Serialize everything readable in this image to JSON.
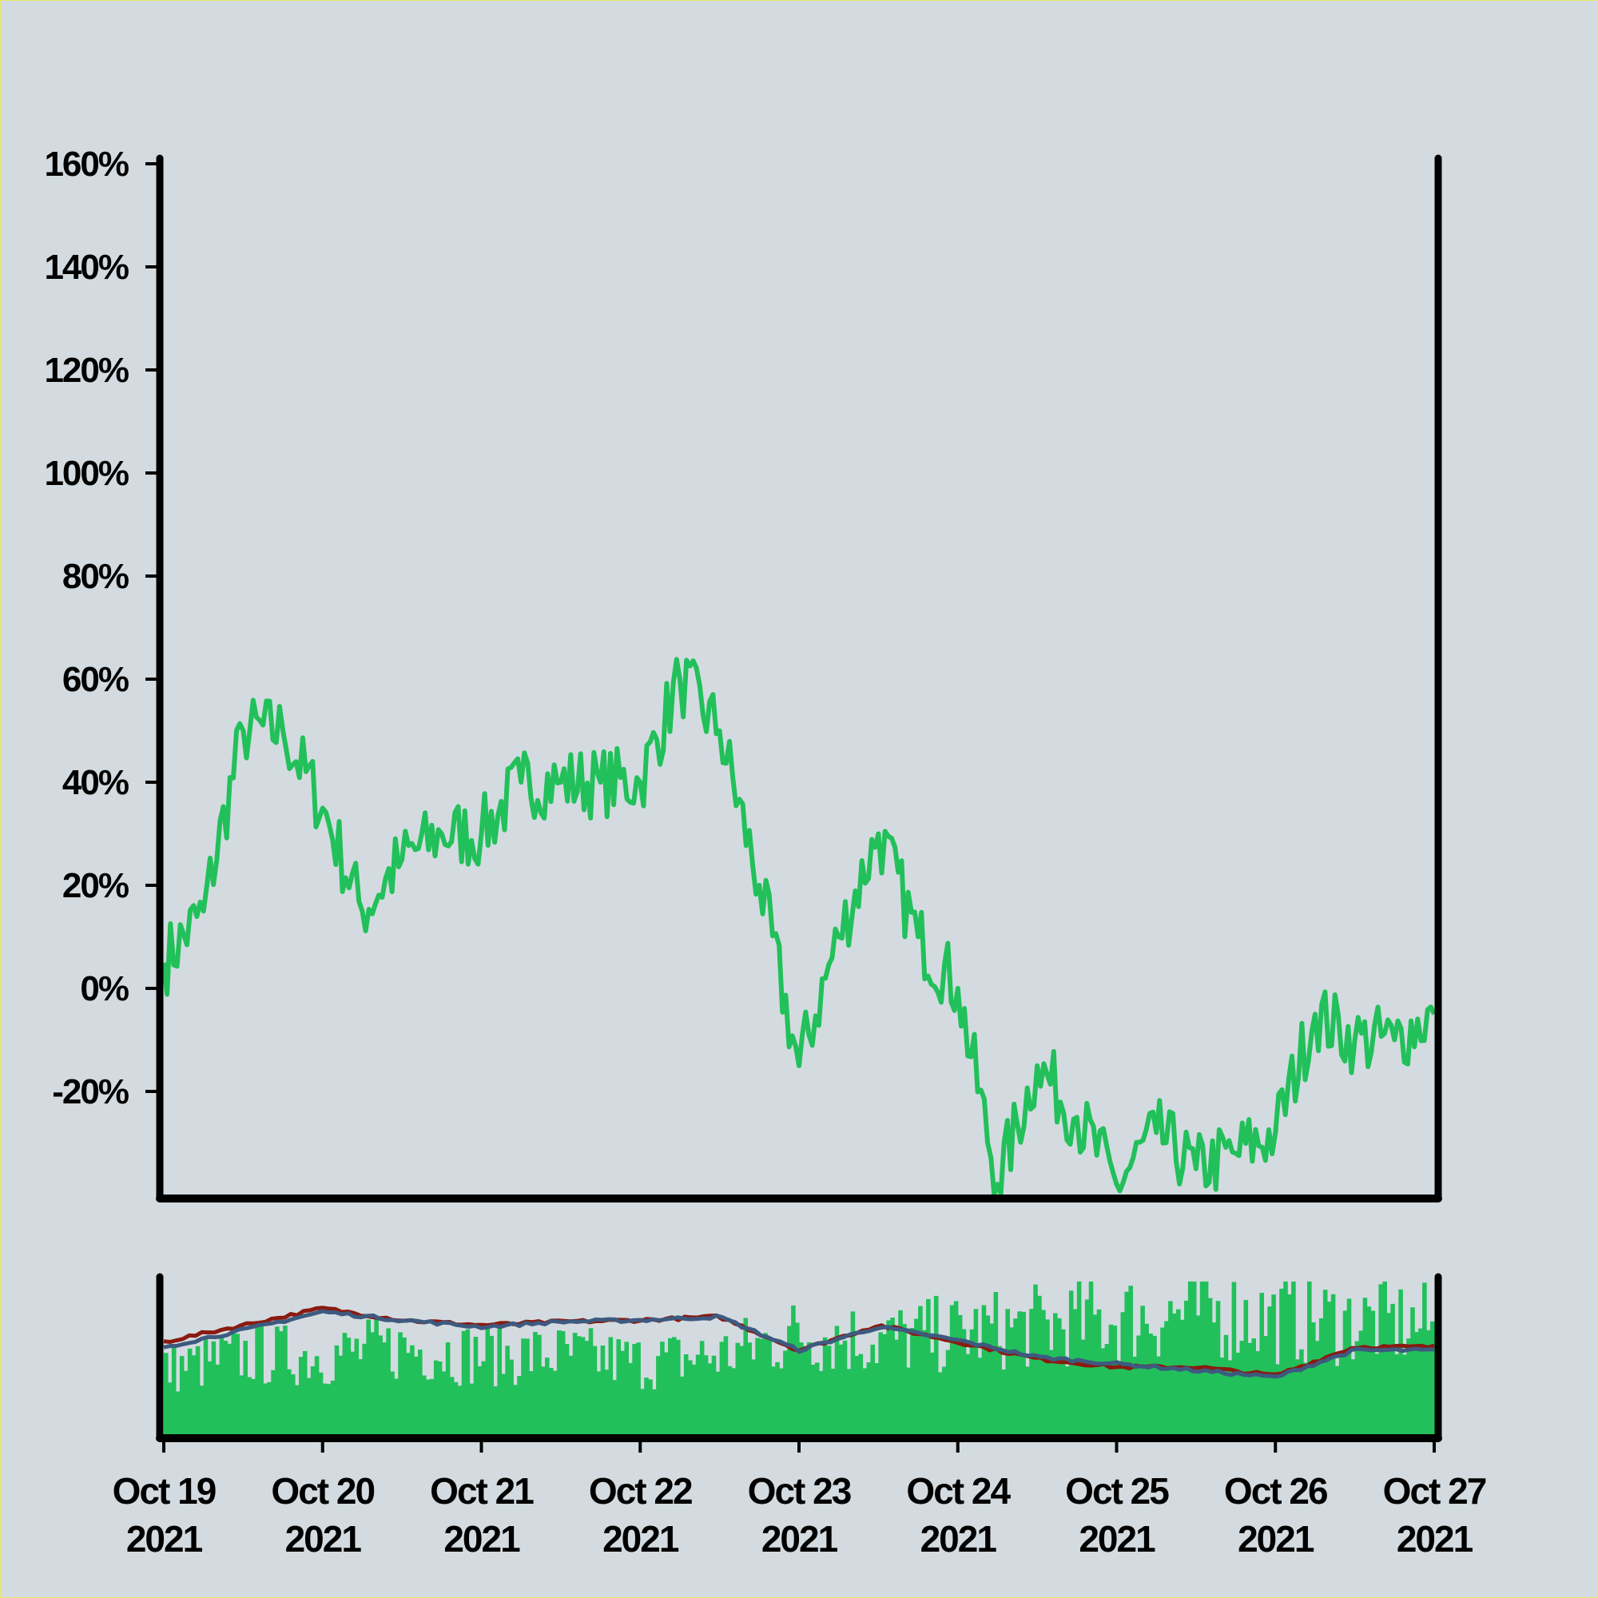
{
  "chart_data": {
    "type": "line",
    "ylim": [
      -40,
      160
    ],
    "y_ticks": [
      -20,
      0,
      20,
      40,
      60,
      80,
      100,
      120,
      140,
      160
    ],
    "y_tick_labels": [
      "-20%",
      "0%",
      "20%",
      "40%",
      "60%",
      "80%",
      "100%",
      "120%",
      "140%",
      "160%"
    ],
    "x_range": [
      "2021-10-19",
      "2021-10-27"
    ],
    "x_tick_labels": [
      {
        "date": "2021-10-19",
        "line1": "Oct 19",
        "line2": "2021"
      },
      {
        "date": "2021-10-20",
        "line1": "Oct 20",
        "line2": "2021"
      },
      {
        "date": "2021-10-21",
        "line1": "Oct 21",
        "line2": "2021"
      },
      {
        "date": "2021-10-22",
        "line1": "Oct 22",
        "line2": "2021"
      },
      {
        "date": "2021-10-23",
        "line1": "Oct 23",
        "line2": "2021"
      },
      {
        "date": "2021-10-24",
        "line1": "Oct 24",
        "line2": "2021"
      },
      {
        "date": "2021-10-25",
        "line1": "Oct 25",
        "line2": "2021"
      },
      {
        "date": "2021-10-26",
        "line1": "Oct 26",
        "line2": "2021"
      },
      {
        "date": "2021-10-27",
        "line1": "Oct 27",
        "line2": "2021"
      }
    ],
    "grid": false,
    "colors": {
      "price_line": "#22c05a",
      "volume_bars": "#22c05a",
      "ma_fast": "#8b1a10",
      "ma_slow": "#3d5a80",
      "axis": "#000000",
      "background": "#d3dbe0"
    },
    "price_series": {
      "x": [
        "2021-10-19 00:00",
        "2021-10-19 06:00",
        "2021-10-19 12:00",
        "2021-10-19 18:00",
        "2021-10-20 00:00",
        "2021-10-20 06:00",
        "2021-10-20 12:00",
        "2021-10-20 18:00",
        "2021-10-21 00:00",
        "2021-10-21 06:00",
        "2021-10-21 12:00",
        "2021-10-21 18:00",
        "2021-10-22 00:00",
        "2021-10-22 06:00",
        "2021-10-22 12:00",
        "2021-10-22 18:00",
        "2021-10-23 00:00",
        "2021-10-23 06:00",
        "2021-10-23 12:00",
        "2021-10-23 18:00",
        "2021-10-24 00:00",
        "2021-10-24 06:00",
        "2021-10-24 12:00",
        "2021-10-24 18:00",
        "2021-10-25 00:00",
        "2021-10-25 06:00",
        "2021-10-25 12:00",
        "2021-10-25 18:00",
        "2021-10-26 00:00",
        "2021-10-26 06:00",
        "2021-10-26 12:00",
        "2021-10-26 18:00",
        "2021-10-27 00:00"
      ],
      "values": [
        5,
        15,
        50,
        50,
        35,
        15,
        25,
        30,
        30,
        40,
        40,
        40,
        40,
        60,
        50,
        20,
        -15,
        10,
        30,
        10,
        0,
        -38,
        -15,
        -25,
        -38,
        -28,
        -35,
        -32,
        -28,
        -5,
        -10,
        -10,
        -5
      ]
    },
    "volume_series": {
      "x": [
        "2021-10-19",
        "2021-10-19 12:00",
        "2021-10-20",
        "2021-10-20 12:00",
        "2021-10-21",
        "2021-10-21 12:00",
        "2021-10-22",
        "2021-10-22 12:00",
        "2021-10-23",
        "2021-10-23 12:00",
        "2021-10-24",
        "2021-10-24 12:00",
        "2021-10-25",
        "2021-10-25 12:00",
        "2021-10-26",
        "2021-10-26 12:00",
        "2021-10-27"
      ],
      "values": [
        45,
        55,
        55,
        60,
        55,
        55,
        50,
        55,
        70,
        65,
        70,
        75,
        80,
        85,
        80,
        78,
        75
      ]
    },
    "ma_fast_series": {
      "values": [
        15,
        25,
        35,
        28,
        25,
        27,
        28,
        30,
        10,
        25,
        15,
        5,
        0,
        0,
        -5,
        12,
        12
      ]
    },
    "ma_slow_series": {
      "values": [
        12,
        22,
        33,
        28,
        24,
        27,
        28,
        30,
        10,
        24,
        16,
        6,
        2,
        -2,
        -6,
        10,
        10
      ]
    }
  }
}
